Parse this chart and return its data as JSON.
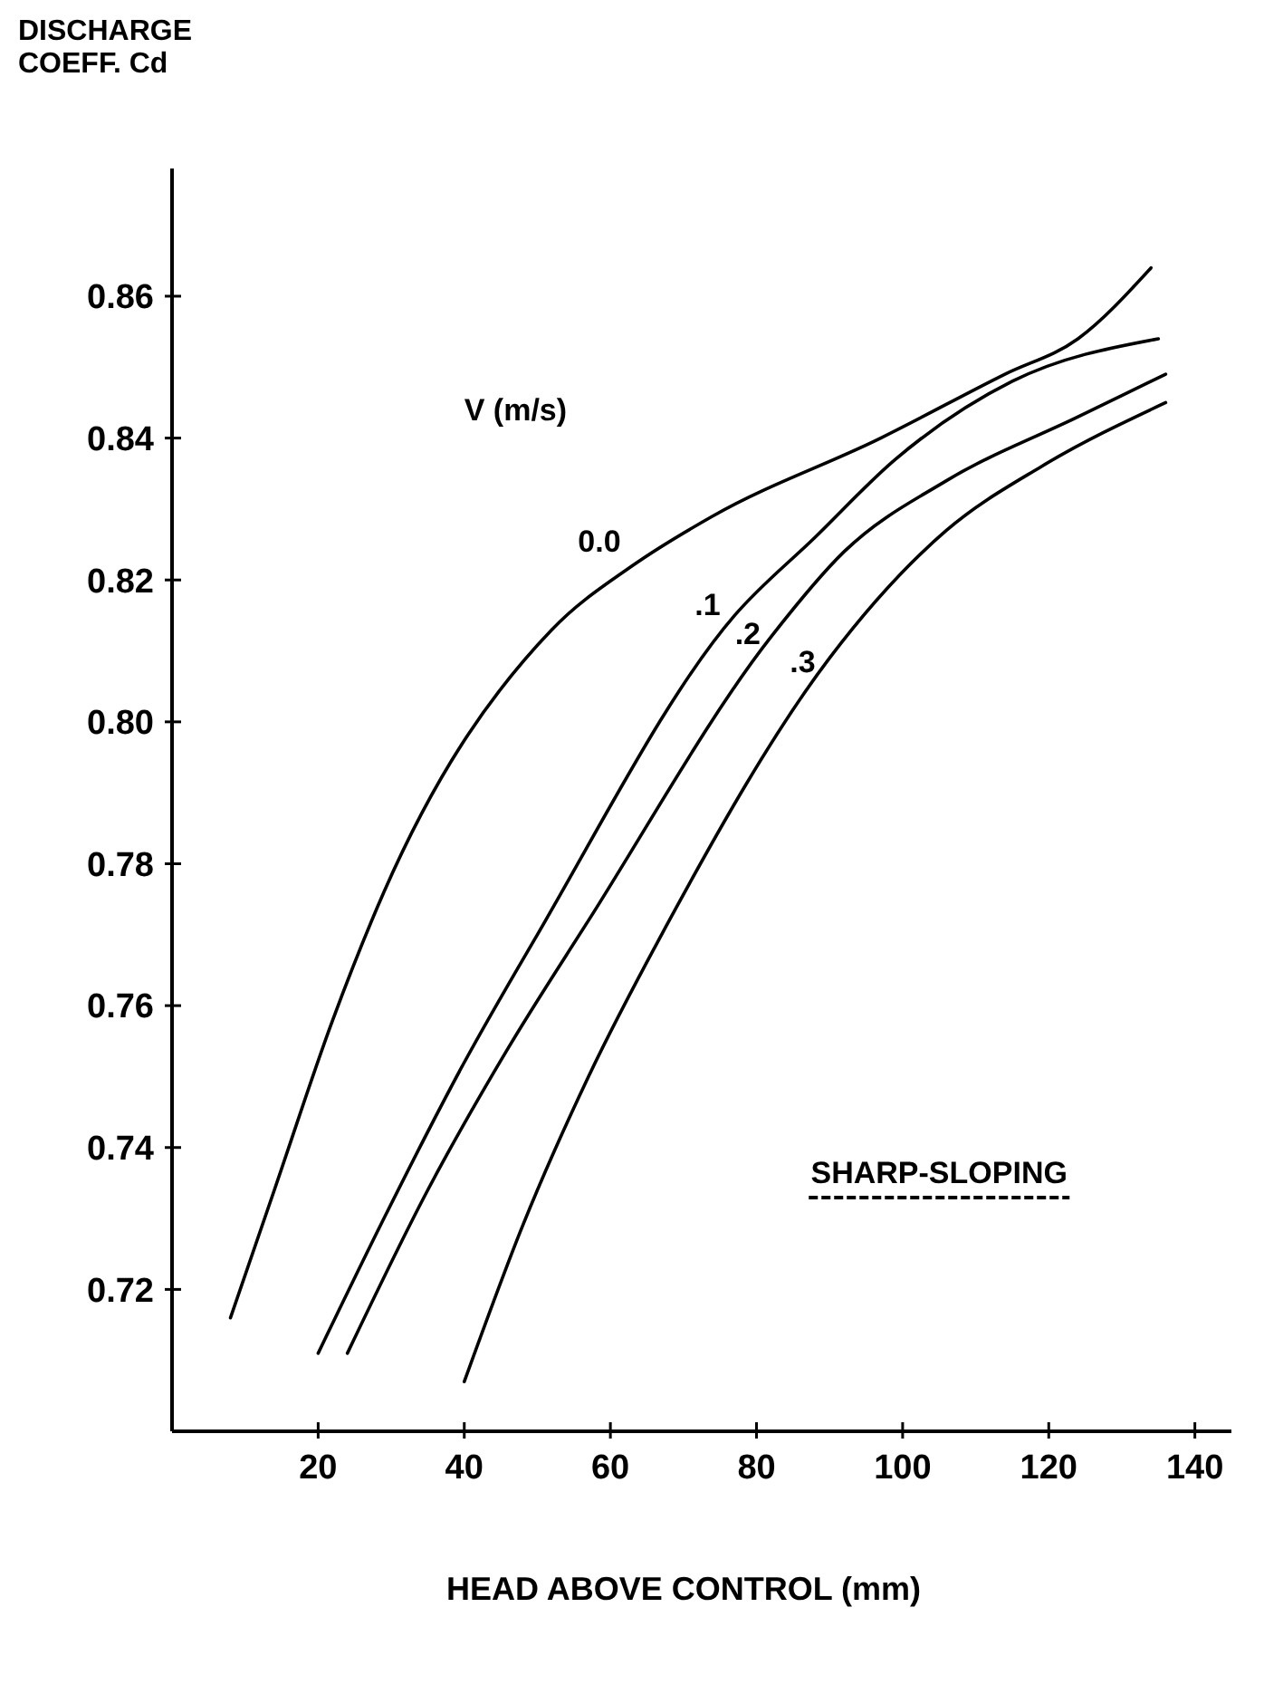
{
  "chart_data": {
    "type": "line",
    "ylabel": "DISCHARGE\nCOEFF. Cd",
    "xlabel": "HEAD ABOVE CONTROL (mm)",
    "legend_title": "V (m/s)",
    "annotations": [
      "SHARP-SLOPING"
    ],
    "xlim": [
      0,
      145
    ],
    "xticks": [
      20,
      40,
      60,
      80,
      100,
      120,
      140
    ],
    "ylim": [
      0.7,
      0.878
    ],
    "yticks": [
      0.72,
      0.74,
      0.76,
      0.78,
      {
        "value": 0.8,
        "label": "0.80"
      },
      0.82,
      0.84,
      0.86
    ],
    "grid": false,
    "legend": false,
    "marker": "none",
    "line_style": "solid",
    "series": [
      {
        "name": "0.0",
        "color": "#000000",
        "x": [
          8,
          14,
          22,
          29,
          52,
          63,
          74,
          97,
          114,
          124,
          134
        ],
        "values": [
          0.716,
          0.734,
          0.758,
          0.776,
          0.813,
          0.822,
          0.829,
          0.84,
          0.849,
          0.854,
          0.864
        ]
      },
      {
        "name": ".1",
        "color": "#000000",
        "x": [
          20,
          29,
          40,
          50,
          77,
          88,
          99,
          115,
          135
        ],
        "values": [
          0.711,
          0.73,
          0.752,
          0.77,
          0.815,
          0.826,
          0.837,
          0.848,
          0.854
        ]
      },
      {
        "name": ".2",
        "color": "#000000",
        "x": [
          24,
          35,
          46,
          57,
          82,
          92,
          106,
          124,
          136
        ],
        "values": [
          0.711,
          0.734,
          0.754,
          0.772,
          0.812,
          0.824,
          0.834,
          0.843,
          0.849
        ]
      },
      {
        "name": ".3",
        "color": "#000000",
        "x": [
          40,
          48,
          57,
          67,
          90,
          106,
          119,
          136
        ],
        "values": [
          0.707,
          0.729,
          0.75,
          0.77,
          0.809,
          0.827,
          0.836,
          0.845
        ]
      }
    ]
  }
}
